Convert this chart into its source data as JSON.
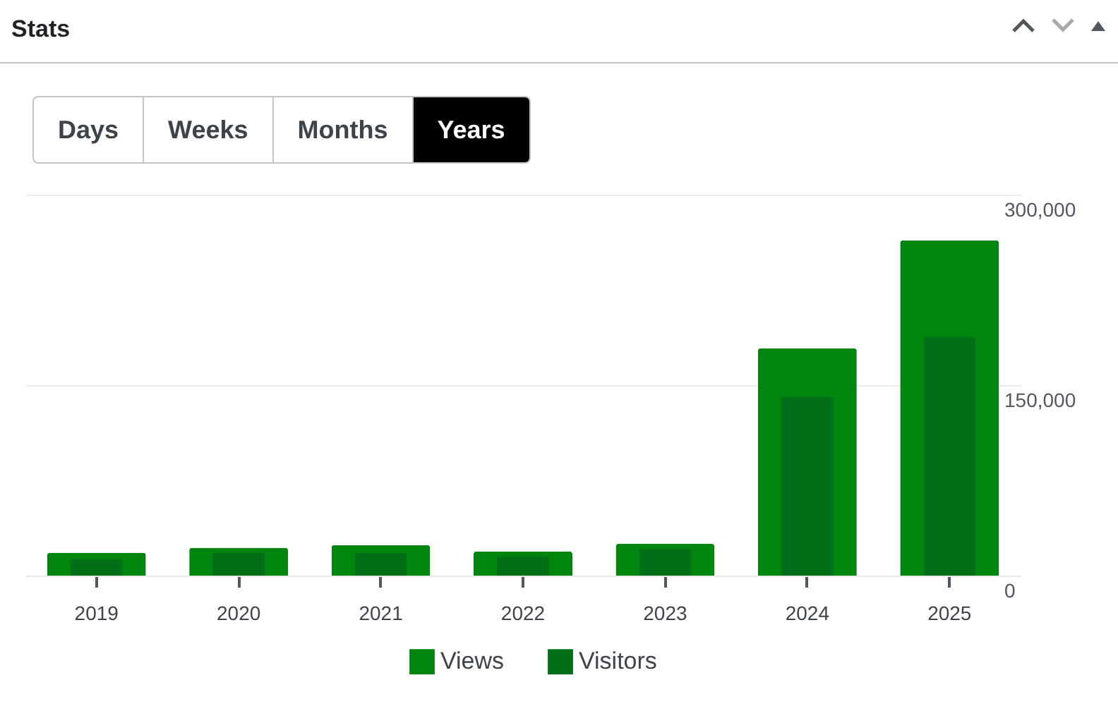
{
  "chart_data": {
    "type": "bar",
    "title": "Stats",
    "annotations": [
      "Days",
      "Weeks",
      "Months",
      "Years"
    ],
    "categories": [
      "2019",
      "2020",
      "2021",
      "2022",
      "2023",
      "2024",
      "2025"
    ],
    "series": [
      {
        "name": "Views",
        "color": "#00860f",
        "values": [
          18000,
          22000,
          24000,
          19000,
          25000,
          179000,
          264000
        ]
      },
      {
        "name": "Visitors",
        "color": "#006f17",
        "values": [
          13000,
          18000,
          18000,
          15000,
          21000,
          141000,
          188000
        ]
      }
    ],
    "ylim": [
      0,
      300000
    ],
    "yticks": [
      {
        "value": 0,
        "label": "0"
      },
      {
        "value": 150000,
        "label": "150,000"
      },
      {
        "value": 300000,
        "label": "300,000"
      }
    ],
    "grid": "y",
    "legend": "bottom"
  }
}
